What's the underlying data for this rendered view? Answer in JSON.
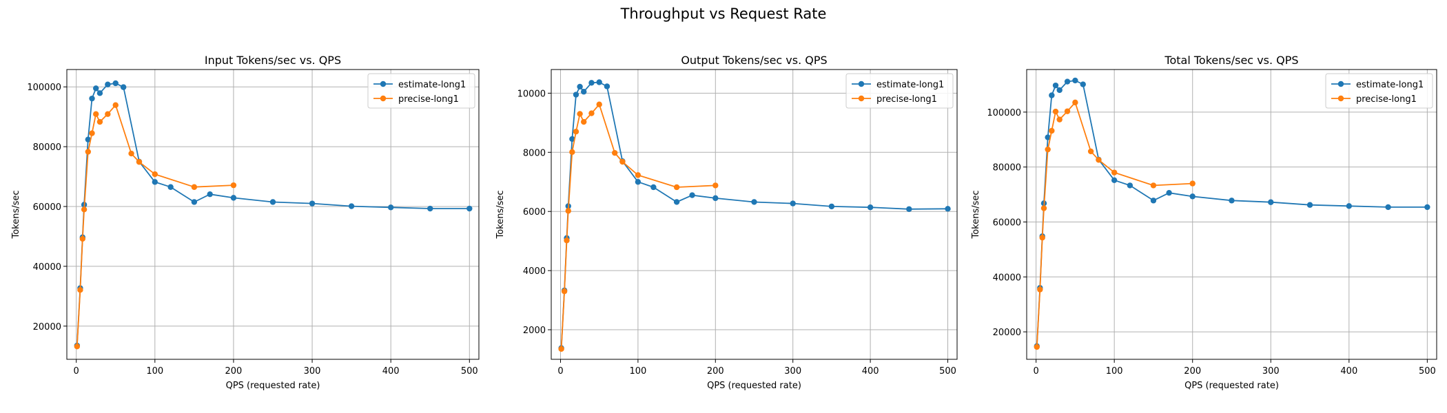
{
  "figure": {
    "suptitle": "Throughput vs Request Rate"
  },
  "colors": {
    "estimate": "#1f77b4",
    "precise": "#ff7f0e",
    "grid": "#b0b0b0"
  },
  "chart_data": [
    {
      "type": "line",
      "title": "Input Tokens/sec vs. QPS",
      "xlabel": "QPS (requested rate)",
      "ylabel": "Tokens/sec",
      "xlim": [
        -12,
        512
      ],
      "ylim": [
        8900,
        105800
      ],
      "xticks": [
        0,
        100,
        200,
        300,
        400,
        500
      ],
      "yticks": [
        20000,
        40000,
        60000,
        80000,
        100000
      ],
      "grid": true,
      "legend_position": "top-right",
      "series": [
        {
          "name": "estimate-long1",
          "x": [
            1,
            5,
            8,
            10,
            15,
            20,
            25,
            30,
            40,
            50,
            60,
            80,
            100,
            120,
            150,
            170,
            200,
            250,
            300,
            350,
            400,
            450,
            500
          ],
          "y": [
            13500,
            32700,
            49700,
            60600,
            82400,
            96100,
            99500,
            97900,
            100800,
            101200,
            99900,
            75000,
            68200,
            66500,
            61500,
            64100,
            62900,
            61500,
            61000,
            60100,
            59700,
            59300,
            59300
          ]
        },
        {
          "name": "precise-long1",
          "x": [
            1,
            5,
            8,
            10,
            15,
            20,
            25,
            30,
            40,
            50,
            70,
            80,
            100,
            150,
            200
          ],
          "y": [
            13200,
            32100,
            49200,
            59000,
            78300,
            84500,
            90900,
            88300,
            90900,
            93900,
            77700,
            74900,
            70800,
            66500,
            67100
          ]
        }
      ]
    },
    {
      "type": "line",
      "title": "Output Tokens/sec vs. QPS",
      "xlabel": "QPS (requested rate)",
      "ylabel": "Tokens/sec",
      "xlim": [
        -12,
        512
      ],
      "ylim": [
        1000,
        10800
      ],
      "xticks": [
        0,
        100,
        200,
        300,
        400,
        500
      ],
      "yticks": [
        2000,
        4000,
        6000,
        8000,
        10000
      ],
      "grid": true,
      "legend_position": "top-right",
      "series": [
        {
          "name": "estimate-long1",
          "x": [
            1,
            5,
            8,
            10,
            15,
            20,
            25,
            30,
            40,
            50,
            60,
            80,
            100,
            120,
            150,
            170,
            200,
            250,
            300,
            350,
            400,
            450,
            500
          ],
          "y": [
            1380,
            3330,
            5100,
            6180,
            8450,
            9950,
            10220,
            10050,
            10350,
            10370,
            10230,
            7700,
            7000,
            6820,
            6320,
            6550,
            6450,
            6320,
            6270,
            6170,
            6140,
            6080,
            6090
          ]
        },
        {
          "name": "precise-long1",
          "x": [
            1,
            5,
            8,
            10,
            15,
            20,
            25,
            30,
            40,
            50,
            70,
            80,
            100,
            150,
            200
          ],
          "y": [
            1350,
            3300,
            5020,
            6020,
            8010,
            8700,
            9300,
            9030,
            9320,
            9620,
            7980,
            7680,
            7230,
            6820,
            6880
          ]
        }
      ]
    },
    {
      "type": "line",
      "title": "Total Tokens/sec vs. QPS",
      "xlabel": "QPS (requested rate)",
      "ylabel": "Tokens/sec",
      "xlim": [
        -12,
        512
      ],
      "ylim": [
        10000,
        115500
      ],
      "xticks": [
        0,
        100,
        200,
        300,
        400,
        500
      ],
      "yticks": [
        20000,
        40000,
        60000,
        80000,
        100000
      ],
      "grid": true,
      "legend_position": "top-right",
      "series": [
        {
          "name": "estimate-long1",
          "x": [
            1,
            5,
            8,
            10,
            15,
            20,
            25,
            30,
            40,
            50,
            60,
            80,
            100,
            120,
            150,
            170,
            200,
            250,
            300,
            350,
            400,
            450,
            500
          ],
          "y": [
            14800,
            36000,
            54800,
            66800,
            90800,
            106100,
            109700,
            108000,
            111100,
            111500,
            110100,
            82700,
            75200,
            73300,
            67800,
            70600,
            69300,
            67800,
            67200,
            66200,
            65800,
            65400,
            65400
          ]
        },
        {
          "name": "precise-long1",
          "x": [
            1,
            5,
            8,
            10,
            15,
            20,
            25,
            30,
            40,
            50,
            70,
            80,
            100,
            150,
            200
          ],
          "y": [
            14500,
            35400,
            54300,
            65000,
            86400,
            93200,
            100200,
            97300,
            100300,
            103500,
            85700,
            82600,
            78000,
            73300,
            74000
          ]
        }
      ]
    }
  ]
}
